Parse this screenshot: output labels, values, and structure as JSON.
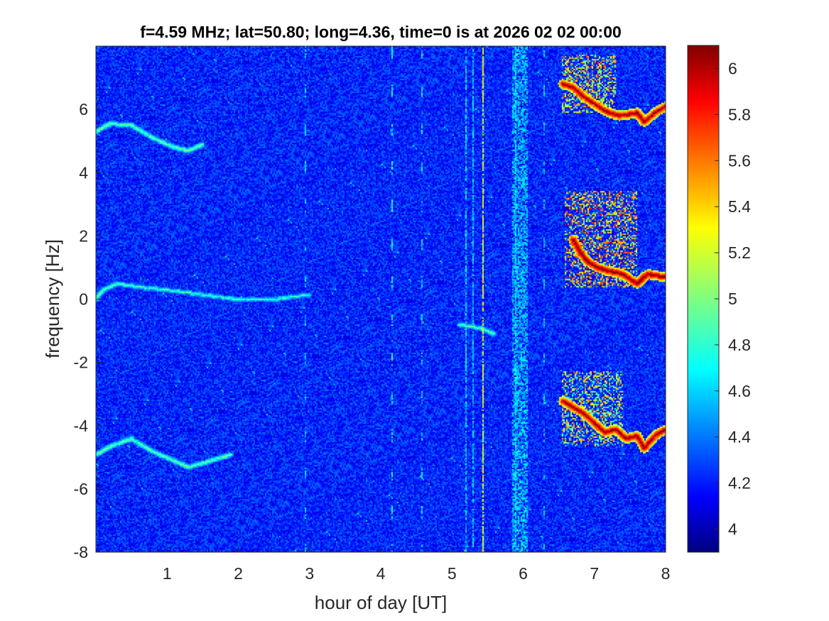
{
  "chart_data": {
    "type": "heatmap",
    "title": "f=4.59 MHz;  lat=50.80; long=4.36, time=0 is at 2026 02 02 00:00",
    "xlabel": "hour of day [UT]",
    "ylabel": "frequency [Hz]",
    "xlim": [
      0,
      8
    ],
    "ylim": [
      -8,
      8
    ],
    "xticks": [
      1,
      2,
      3,
      4,
      5,
      6,
      7,
      8
    ],
    "xtick_labels": [
      "1",
      "2",
      "3",
      "4",
      "5",
      "6",
      "7",
      "8"
    ],
    "yticks": [
      -8,
      -6,
      -4,
      -2,
      0,
      2,
      4,
      6
    ],
    "ytick_labels": [
      "-8",
      "-6",
      "-4",
      "-2",
      "0",
      "2",
      "4",
      "6"
    ],
    "colorbar": {
      "colormap": "jet",
      "clim": [
        3.9,
        6.1
      ],
      "ticks": [
        4,
        4.2,
        4.4,
        4.6,
        4.8,
        5,
        5.2,
        5.4,
        5.6,
        5.8,
        6
      ],
      "tick_labels": [
        "4",
        "4.2",
        "4.4",
        "4.6",
        "4.8",
        "5",
        "5.2",
        "5.4",
        "5.6",
        "5.8",
        "6"
      ]
    },
    "background_level": 4.25,
    "traces": [
      {
        "label": "weak echo +5 Hz",
        "level": 4.85,
        "points": [
          [
            0.0,
            5.3
          ],
          [
            0.2,
            5.55
          ],
          [
            0.5,
            5.5
          ],
          [
            0.8,
            5.1
          ],
          [
            1.1,
            4.8
          ],
          [
            1.3,
            4.7
          ],
          [
            1.5,
            4.9
          ]
        ]
      },
      {
        "label": "weak echo 0 Hz",
        "level": 4.8,
        "points": [
          [
            0.0,
            0.0
          ],
          [
            0.1,
            0.3
          ],
          [
            0.3,
            0.5
          ],
          [
            0.6,
            0.4
          ],
          [
            1.0,
            0.3
          ],
          [
            1.5,
            0.15
          ],
          [
            2.0,
            0.0
          ],
          [
            2.5,
            0.0
          ],
          [
            3.0,
            0.15
          ]
        ]
      },
      {
        "label": "weak echo -5 Hz",
        "level": 4.85,
        "points": [
          [
            0.0,
            -4.9
          ],
          [
            0.2,
            -4.65
          ],
          [
            0.5,
            -4.4
          ],
          [
            0.8,
            -4.8
          ],
          [
            1.1,
            -5.1
          ],
          [
            1.3,
            -5.3
          ],
          [
            1.6,
            -5.1
          ],
          [
            1.9,
            -4.9
          ]
        ]
      },
      {
        "label": "weak echo -1 Hz",
        "level": 4.8,
        "points": [
          [
            5.1,
            -0.8
          ],
          [
            5.4,
            -0.9
          ],
          [
            5.6,
            -1.1
          ]
        ]
      },
      {
        "label": "strong echo +6 Hz",
        "level": 5.95,
        "points": [
          [
            6.55,
            6.8
          ],
          [
            6.7,
            6.7
          ],
          [
            6.85,
            6.4
          ],
          [
            7.05,
            6.1
          ],
          [
            7.2,
            5.9
          ],
          [
            7.35,
            5.8
          ],
          [
            7.5,
            5.85
          ],
          [
            7.6,
            5.9
          ],
          [
            7.7,
            5.6
          ],
          [
            7.85,
            5.9
          ],
          [
            8.0,
            6.1
          ]
        ]
      },
      {
        "label": "strong echo +1 Hz",
        "level": 6.0,
        "points": [
          [
            6.7,
            1.9
          ],
          [
            6.8,
            1.5
          ],
          [
            6.9,
            1.2
          ],
          [
            7.05,
            1.0
          ],
          [
            7.2,
            0.9
          ],
          [
            7.4,
            0.8
          ],
          [
            7.6,
            0.5
          ],
          [
            7.75,
            0.8
          ],
          [
            8.0,
            0.7
          ]
        ]
      },
      {
        "label": "strong echo -4 Hz",
        "level": 5.95,
        "points": [
          [
            6.55,
            -3.2
          ],
          [
            6.7,
            -3.4
          ],
          [
            6.85,
            -3.6
          ],
          [
            7.0,
            -3.9
          ],
          [
            7.15,
            -4.2
          ],
          [
            7.3,
            -4.1
          ],
          [
            7.45,
            -4.4
          ],
          [
            7.6,
            -4.3
          ],
          [
            7.7,
            -4.7
          ],
          [
            7.85,
            -4.3
          ],
          [
            8.0,
            -4.1
          ]
        ]
      }
    ],
    "diffuse_regions": [
      {
        "x": [
          6.55,
          7.3
        ],
        "y": [
          5.9,
          7.7
        ],
        "level": 5.4
      },
      {
        "x": [
          6.6,
          7.6
        ],
        "y": [
          0.4,
          3.4
        ],
        "level": 5.5
      },
      {
        "x": [
          6.55,
          7.4
        ],
        "y": [
          -4.6,
          -2.3
        ],
        "level": 5.3
      }
    ],
    "vertical_lines": [
      {
        "x": 2.95,
        "level": 4.6,
        "dashed": true
      },
      {
        "x": 4.15,
        "level": 4.7,
        "dashed": true
      },
      {
        "x": 4.58,
        "level": 4.6,
        "dashed": true
      },
      {
        "x": 5.2,
        "level": 4.6,
        "dashed": false
      },
      {
        "x": 5.3,
        "level": 4.6,
        "dashed": false
      },
      {
        "x": 5.43,
        "level": 5.2,
        "dashed": false
      },
      {
        "x": 5.9,
        "level": 4.6,
        "dashed": false
      },
      {
        "x": 6.3,
        "level": 4.6,
        "dashed": true
      }
    ],
    "vertical_bands": [
      {
        "x": [
          5.85,
          6.05
        ],
        "level": 4.55
      }
    ]
  }
}
